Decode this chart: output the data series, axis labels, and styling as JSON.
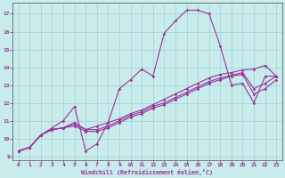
{
  "xlabel": "Windchill (Refroidissement éolien,°C)",
  "bg_color": "#c8ecec",
  "grid_color": "#a8d4d4",
  "line_color": "#993399",
  "spine_color": "#666666",
  "xlim": [
    -0.5,
    23.5
  ],
  "ylim": [
    8.8,
    17.6
  ],
  "xticks": [
    0,
    1,
    2,
    3,
    4,
    5,
    6,
    7,
    8,
    9,
    10,
    11,
    12,
    13,
    14,
    15,
    16,
    17,
    18,
    19,
    20,
    21,
    22,
    23
  ],
  "yticks": [
    9,
    10,
    11,
    12,
    13,
    14,
    15,
    16,
    17
  ],
  "line1_x": [
    0,
    1,
    2,
    3,
    4,
    5,
    6,
    7,
    8,
    9,
    10,
    11,
    12,
    13,
    14,
    15,
    16,
    17,
    18,
    19,
    20,
    21,
    22,
    23
  ],
  "line1_y": [
    9.3,
    9.5,
    10.2,
    10.6,
    11.0,
    11.8,
    9.3,
    9.7,
    10.9,
    12.8,
    13.3,
    13.9,
    13.5,
    15.9,
    16.6,
    17.2,
    17.2,
    17.0,
    15.2,
    13.0,
    13.1,
    12.0,
    13.5,
    13.5
  ],
  "line2_x": [
    0,
    1,
    2,
    3,
    4,
    5,
    6,
    7,
    8,
    9,
    10,
    11,
    12,
    13,
    14,
    15,
    16,
    17,
    18,
    19,
    20,
    21,
    22,
    23
  ],
  "line2_y": [
    9.3,
    9.5,
    10.2,
    10.5,
    10.6,
    10.8,
    10.5,
    10.7,
    10.9,
    11.1,
    11.4,
    11.6,
    11.9,
    12.2,
    12.5,
    12.8,
    13.1,
    13.4,
    13.6,
    13.7,
    13.85,
    13.9,
    14.1,
    13.5
  ],
  "line3_x": [
    0,
    1,
    2,
    3,
    4,
    5,
    6,
    7,
    8,
    9,
    10,
    11,
    12,
    13,
    14,
    15,
    16,
    17,
    18,
    19,
    20,
    21,
    22,
    23
  ],
  "line3_y": [
    9.3,
    9.5,
    10.2,
    10.5,
    10.6,
    10.9,
    10.5,
    10.5,
    10.7,
    11.0,
    11.3,
    11.5,
    11.8,
    12.0,
    12.3,
    12.6,
    12.9,
    13.2,
    13.4,
    13.55,
    13.7,
    12.8,
    13.1,
    13.5
  ],
  "line4_x": [
    0,
    1,
    2,
    3,
    4,
    5,
    6,
    7,
    8,
    9,
    10,
    11,
    12,
    13,
    14,
    15,
    16,
    17,
    18,
    19,
    20,
    21,
    22,
    23
  ],
  "line4_y": [
    9.3,
    9.5,
    10.2,
    10.5,
    10.6,
    10.7,
    10.4,
    10.4,
    10.6,
    10.9,
    11.2,
    11.4,
    11.7,
    11.9,
    12.2,
    12.5,
    12.8,
    13.1,
    13.3,
    13.5,
    13.6,
    12.5,
    12.8,
    13.3
  ]
}
